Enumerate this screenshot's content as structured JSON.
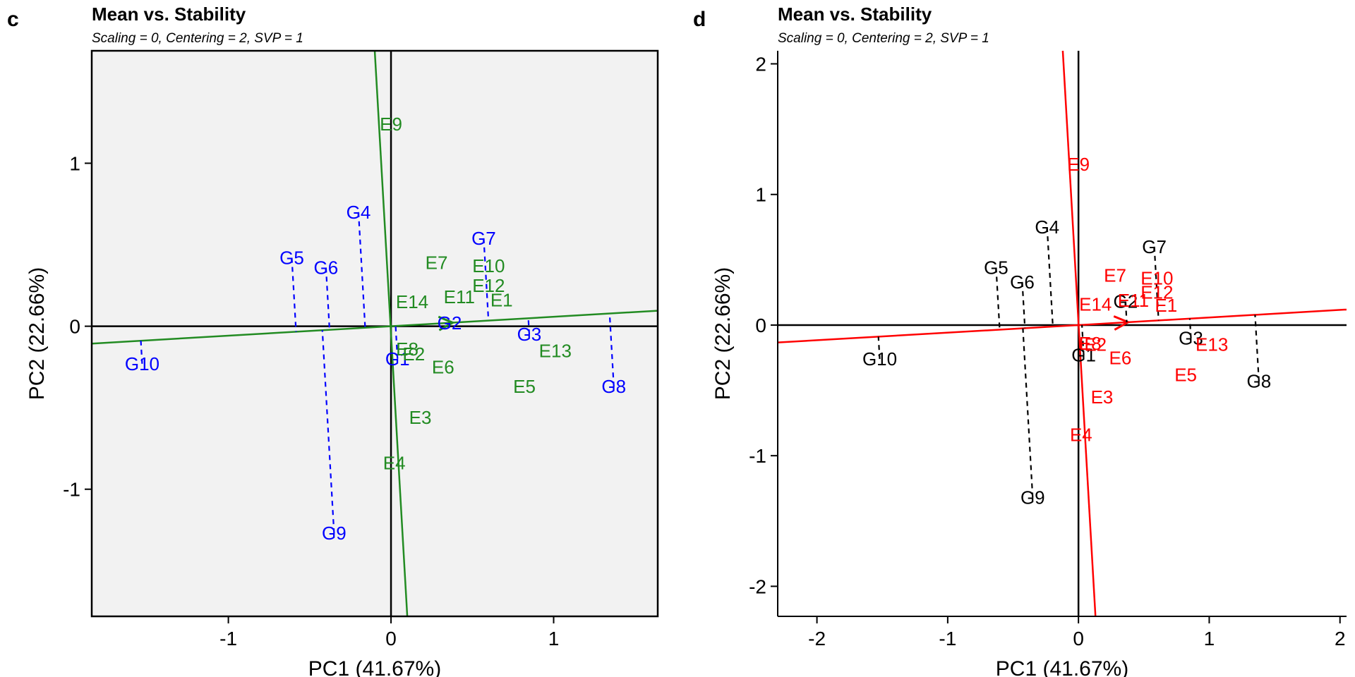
{
  "chart_data": [
    {
      "panel_label": "c",
      "type": "scatter",
      "title": "Mean vs. Stability",
      "subtitle": "Scaling = 0, Centering = 2, SVP = 1",
      "xlabel": "PC1 (41.67%)",
      "ylabel": "PC2 (22.66%)",
      "xlim": [
        -1.84,
        1.64
      ],
      "ylim": [
        -1.78,
        1.69
      ],
      "x_ticks": [
        {
          "value": -1,
          "label": "-1"
        },
        {
          "value": 0,
          "label": "0"
        },
        {
          "value": 1,
          "label": "1"
        }
      ],
      "y_ticks": [
        {
          "value": -1,
          "label": "-1"
        },
        {
          "value": 0,
          "label": "0"
        },
        {
          "value": 1,
          "label": "1"
        }
      ],
      "background": "#f2f2f2",
      "boxed": true,
      "grid": false,
      "colors": {
        "genotype": "#0000ff",
        "environment": "#228b22",
        "axis_line": "#228b22",
        "frame": "#000000"
      },
      "aec_axis": {
        "slope": 0.058,
        "arrow_end": [
          0.38,
          0.022
        ]
      },
      "aec_perpendicular": {
        "x_at_top": -0.1,
        "x_at_bottom": 0.1
      },
      "genotypes": [
        {
          "label": "G1",
          "x": 0.04,
          "y": -0.2
        },
        {
          "label": "G2",
          "x": 0.36,
          "y": 0.02
        },
        {
          "label": "G3",
          "x": 0.85,
          "y": -0.05
        },
        {
          "label": "G4",
          "x": -0.2,
          "y": 0.7
        },
        {
          "label": "G5",
          "x": -0.61,
          "y": 0.42
        },
        {
          "label": "G6",
          "x": -0.4,
          "y": 0.36
        },
        {
          "label": "G7",
          "x": 0.57,
          "y": 0.54
        },
        {
          "label": "G8",
          "x": 1.37,
          "y": -0.37
        },
        {
          "label": "G9",
          "x": -0.35,
          "y": -1.27
        },
        {
          "label": "G10",
          "x": -1.53,
          "y": -0.23
        }
      ],
      "environments": [
        {
          "label": "E1",
          "x": 0.68,
          "y": 0.16
        },
        {
          "label": "E2",
          "x": 0.14,
          "y": -0.17
        },
        {
          "label": "E3",
          "x": 0.18,
          "y": -0.56
        },
        {
          "label": "E4",
          "x": 0.02,
          "y": -0.84
        },
        {
          "label": "E5",
          "x": 0.82,
          "y": -0.37
        },
        {
          "label": "E6",
          "x": 0.32,
          "y": -0.25
        },
        {
          "label": "E7",
          "x": 0.28,
          "y": 0.39
        },
        {
          "label": "E8",
          "x": 0.1,
          "y": -0.14
        },
        {
          "label": "E9",
          "x": 0.0,
          "y": 1.24
        },
        {
          "label": "E10",
          "x": 0.6,
          "y": 0.37
        },
        {
          "label": "E11",
          "x": 0.42,
          "y": 0.18
        },
        {
          "label": "E12",
          "x": 0.6,
          "y": 0.25
        },
        {
          "label": "E13",
          "x": 1.01,
          "y": -0.15
        },
        {
          "label": "E14",
          "x": 0.13,
          "y": 0.15
        }
      ]
    },
    {
      "panel_label": "d",
      "type": "scatter",
      "title": "Mean vs. Stability",
      "subtitle": "Scaling = 0, Centering = 2, SVP = 1",
      "xlabel": "PC1 (41.67%)",
      "ylabel": "PC2 (22.66%)",
      "xlim": [
        -2.3,
        2.05
      ],
      "ylim": [
        -2.23,
        2.1
      ],
      "x_ticks": [
        {
          "value": -2,
          "label": "-2"
        },
        {
          "value": -1,
          "label": "-1"
        },
        {
          "value": 0,
          "label": "0"
        },
        {
          "value": 1,
          "label": "1"
        },
        {
          "value": 2,
          "label": "2"
        }
      ],
      "y_ticks": [
        {
          "value": -2,
          "label": "-2"
        },
        {
          "value": -1,
          "label": "-1"
        },
        {
          "value": 0,
          "label": "0"
        },
        {
          "value": 1,
          "label": "1"
        },
        {
          "value": 2,
          "label": "2"
        }
      ],
      "background": "#ffffff",
      "boxed": false,
      "grid": false,
      "colors": {
        "genotype": "#000000",
        "environment": "#ff0000",
        "axis_line": "#ff0000",
        "frame": "#000000"
      },
      "aec_axis": {
        "slope": 0.058,
        "arrow_end": [
          0.38,
          0.022
        ]
      },
      "aec_perpendicular": {
        "x_at_top": -0.12,
        "x_at_bottom": 0.13
      },
      "genotypes": [
        {
          "label": "G1",
          "x": 0.04,
          "y": -0.23
        },
        {
          "label": "G2",
          "x": 0.36,
          "y": 0.18
        },
        {
          "label": "G3",
          "x": 0.86,
          "y": -0.1
        },
        {
          "label": "G4",
          "x": -0.24,
          "y": 0.75
        },
        {
          "label": "G5",
          "x": -0.63,
          "y": 0.44
        },
        {
          "label": "G6",
          "x": -0.43,
          "y": 0.33
        },
        {
          "label": "G7",
          "x": 0.58,
          "y": 0.6
        },
        {
          "label": "G8",
          "x": 1.38,
          "y": -0.43
        },
        {
          "label": "G9",
          "x": -0.35,
          "y": -1.32
        },
        {
          "label": "G10",
          "x": -1.52,
          "y": -0.26
        }
      ],
      "environments": [
        {
          "label": "E1",
          "x": 0.67,
          "y": 0.15
        },
        {
          "label": "E2",
          "x": 0.13,
          "y": -0.15
        },
        {
          "label": "E3",
          "x": 0.18,
          "y": -0.55
        },
        {
          "label": "E4",
          "x": 0.02,
          "y": -0.84
        },
        {
          "label": "E5",
          "x": 0.82,
          "y": -0.38
        },
        {
          "label": "E6",
          "x": 0.32,
          "y": -0.25
        },
        {
          "label": "E7",
          "x": 0.28,
          "y": 0.38
        },
        {
          "label": "E8",
          "x": 0.09,
          "y": -0.14
        },
        {
          "label": "E9",
          "x": 0.0,
          "y": 1.23
        },
        {
          "label": "E10",
          "x": 0.6,
          "y": 0.36
        },
        {
          "label": "E11",
          "x": 0.42,
          "y": 0.19
        },
        {
          "label": "E12",
          "x": 0.6,
          "y": 0.25
        },
        {
          "label": "E13",
          "x": 1.02,
          "y": -0.15
        },
        {
          "label": "E14",
          "x": 0.13,
          "y": 0.16
        }
      ]
    }
  ]
}
